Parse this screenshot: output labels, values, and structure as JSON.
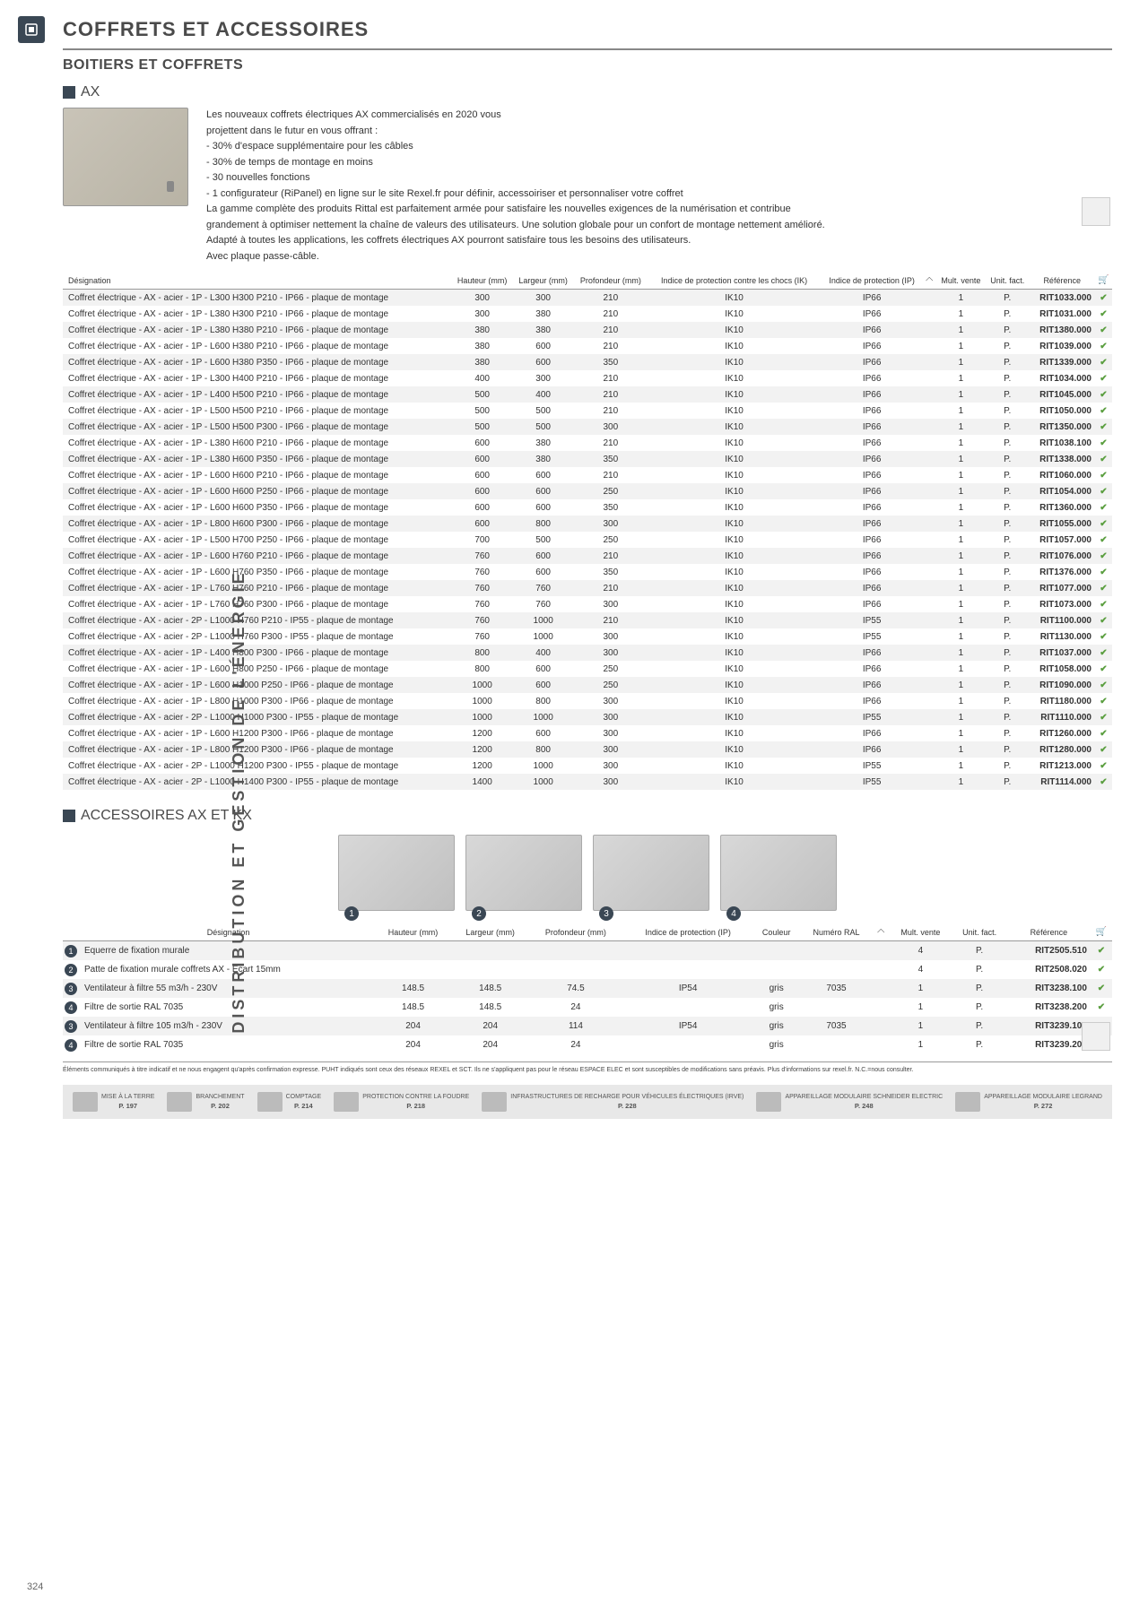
{
  "header": {
    "title": "COFFRETS ET ACCESSOIRES",
    "subtitle": "BOITIERS ET COFFRETS",
    "section1": "AX",
    "section2": "ACCESSOIRES AX ET KX"
  },
  "sidebar_text": "DISTRIBUTION ET GESTION DE L'ÉNERGIE",
  "intro": {
    "lines": [
      "Les nouveaux coffrets électriques AX commercialisés en 2020 vous",
      "projettent dans le futur en vous offrant :",
      "- 30% d'espace supplémentaire pour les câbles",
      "- 30% de temps de montage en moins",
      "- 30 nouvelles fonctions",
      "- 1 configurateur (RiPanel) en ligne sur le site Rexel.fr pour définir, accessoiriser et personnaliser votre coffret",
      "La gamme complète des produits Rittal est parfaitement armée pour satisfaire les nouvelles exigences de la numérisation et contribue",
      "grandement à optimiser nettement la chaîne de valeurs des utilisateurs. Une solution globale pour un confort de montage nettement amélioré.",
      "Adapté à toutes les applications, les coffrets électriques AX pourront satisfaire tous les besoins des utilisateurs.",
      "Avec plaque passe-câble."
    ]
  },
  "table1": {
    "headers": [
      "Désignation",
      "Hauteur (mm)",
      "Largeur (mm)",
      "Profondeur (mm)",
      "Indice de protection contre les chocs (IK)",
      "Indice de protection (IP)",
      "",
      "Mult. vente",
      "Unit. fact.",
      "Référence",
      ""
    ],
    "rows": [
      [
        "Coffret électrique - AX - acier - 1P - L300 H300 P210 - IP66 - plaque de montage",
        "300",
        "300",
        "210",
        "IK10",
        "IP66",
        "",
        "1",
        "P.",
        "RIT1033.000",
        "✔"
      ],
      [
        "Coffret électrique - AX - acier - 1P - L380 H300 P210 - IP66 - plaque de montage",
        "300",
        "380",
        "210",
        "IK10",
        "IP66",
        "",
        "1",
        "P.",
        "RIT1031.000",
        "✔"
      ],
      [
        "Coffret électrique - AX - acier - 1P - L380 H380 P210 - IP66 - plaque de montage",
        "380",
        "380",
        "210",
        "IK10",
        "IP66",
        "",
        "1",
        "P.",
        "RIT1380.000",
        "✔"
      ],
      [
        "Coffret électrique - AX - acier - 1P - L600 H380 P210 - IP66 - plaque de montage",
        "380",
        "600",
        "210",
        "IK10",
        "IP66",
        "",
        "1",
        "P.",
        "RIT1039.000",
        "✔"
      ],
      [
        "Coffret électrique - AX - acier - 1P - L600 H380 P350 - IP66 - plaque de montage",
        "380",
        "600",
        "350",
        "IK10",
        "IP66",
        "",
        "1",
        "P.",
        "RIT1339.000",
        "✔"
      ],
      [
        "Coffret électrique - AX - acier - 1P - L300 H400 P210 - IP66 - plaque de montage",
        "400",
        "300",
        "210",
        "IK10",
        "IP66",
        "",
        "1",
        "P.",
        "RIT1034.000",
        "✔"
      ],
      [
        "Coffret électrique - AX - acier - 1P - L400 H500 P210 - IP66 - plaque de montage",
        "500",
        "400",
        "210",
        "IK10",
        "IP66",
        "",
        "1",
        "P.",
        "RIT1045.000",
        "✔"
      ],
      [
        "Coffret électrique - AX - acier - 1P - L500 H500 P210 - IP66 - plaque de montage",
        "500",
        "500",
        "210",
        "IK10",
        "IP66",
        "",
        "1",
        "P.",
        "RIT1050.000",
        "✔"
      ],
      [
        "Coffret électrique - AX - acier - 1P - L500 H500 P300 - IP66 - plaque de montage",
        "500",
        "500",
        "300",
        "IK10",
        "IP66",
        "",
        "1",
        "P.",
        "RIT1350.000",
        "✔"
      ],
      [
        "Coffret électrique - AX - acier - 1P - L380 H600 P210 - IP66 - plaque de montage",
        "600",
        "380",
        "210",
        "IK10",
        "IP66",
        "",
        "1",
        "P.",
        "RIT1038.100",
        "✔"
      ],
      [
        "Coffret électrique - AX - acier - 1P - L380 H600 P350 - IP66 - plaque de montage",
        "600",
        "380",
        "350",
        "IK10",
        "IP66",
        "",
        "1",
        "P.",
        "RIT1338.000",
        "✔"
      ],
      [
        "Coffret électrique - AX - acier - 1P - L600 H600 P210 - IP66 - plaque de montage",
        "600",
        "600",
        "210",
        "IK10",
        "IP66",
        "",
        "1",
        "P.",
        "RIT1060.000",
        "✔"
      ],
      [
        "Coffret électrique - AX - acier - 1P - L600 H600 P250 - IP66 - plaque de montage",
        "600",
        "600",
        "250",
        "IK10",
        "IP66",
        "",
        "1",
        "P.",
        "RIT1054.000",
        "✔"
      ],
      [
        "Coffret électrique - AX - acier - 1P - L600 H600 P350 - IP66 - plaque de montage",
        "600",
        "600",
        "350",
        "IK10",
        "IP66",
        "",
        "1",
        "P.",
        "RIT1360.000",
        "✔"
      ],
      [
        "Coffret électrique - AX - acier - 1P - L800 H600 P300 - IP66 - plaque de montage",
        "600",
        "800",
        "300",
        "IK10",
        "IP66",
        "",
        "1",
        "P.",
        "RIT1055.000",
        "✔"
      ],
      [
        "Coffret électrique - AX - acier - 1P - L500 H700 P250 - IP66 - plaque de montage",
        "700",
        "500",
        "250",
        "IK10",
        "IP66",
        "",
        "1",
        "P.",
        "RIT1057.000",
        "✔"
      ],
      [
        "Coffret électrique - AX - acier - 1P - L600 H760 P210 - IP66 - plaque de montage",
        "760",
        "600",
        "210",
        "IK10",
        "IP66",
        "",
        "1",
        "P.",
        "RIT1076.000",
        "✔"
      ],
      [
        "Coffret électrique - AX - acier - 1P - L600 H760 P350 - IP66 - plaque de montage",
        "760",
        "600",
        "350",
        "IK10",
        "IP66",
        "",
        "1",
        "P.",
        "RIT1376.000",
        "✔"
      ],
      [
        "Coffret électrique - AX - acier - 1P - L760 H760 P210 - IP66 - plaque de montage",
        "760",
        "760",
        "210",
        "IK10",
        "IP66",
        "",
        "1",
        "P.",
        "RIT1077.000",
        "✔"
      ],
      [
        "Coffret électrique - AX - acier - 1P - L760 H760 P300 - IP66 - plaque de montage",
        "760",
        "760",
        "300",
        "IK10",
        "IP66",
        "",
        "1",
        "P.",
        "RIT1073.000",
        "✔"
      ],
      [
        "Coffret électrique - AX - acier - 2P - L1000 H760 P210 - IP55 - plaque de montage",
        "760",
        "1000",
        "210",
        "IK10",
        "IP55",
        "",
        "1",
        "P.",
        "RIT1100.000",
        "✔"
      ],
      [
        "Coffret électrique - AX - acier - 2P - L1000 H760 P300 - IP55 - plaque de montage",
        "760",
        "1000",
        "300",
        "IK10",
        "IP55",
        "",
        "1",
        "P.",
        "RIT1130.000",
        "✔"
      ],
      [
        "Coffret électrique - AX - acier - 1P - L400 H800 P300 - IP66 - plaque de montage",
        "800",
        "400",
        "300",
        "IK10",
        "IP66",
        "",
        "1",
        "P.",
        "RIT1037.000",
        "✔"
      ],
      [
        "Coffret électrique - AX - acier - 1P - L600 H800 P250 - IP66 - plaque de montage",
        "800",
        "600",
        "250",
        "IK10",
        "IP66",
        "",
        "1",
        "P.",
        "RIT1058.000",
        "✔"
      ],
      [
        "Coffret électrique - AX - acier - 1P - L600 H1000 P250 - IP66 - plaque de montage",
        "1000",
        "600",
        "250",
        "IK10",
        "IP66",
        "",
        "1",
        "P.",
        "RIT1090.000",
        "✔"
      ],
      [
        "Coffret électrique - AX - acier - 1P - L800 H1000 P300 - IP66 - plaque de montage",
        "1000",
        "800",
        "300",
        "IK10",
        "IP66",
        "",
        "1",
        "P.",
        "RIT1180.000",
        "✔"
      ],
      [
        "Coffret électrique - AX - acier - 2P - L1000 H1000 P300 - IP55 - plaque de montage",
        "1000",
        "1000",
        "300",
        "IK10",
        "IP55",
        "",
        "1",
        "P.",
        "RIT1110.000",
        "✔"
      ],
      [
        "Coffret électrique - AX - acier - 1P - L600 H1200 P300 - IP66 - plaque de montage",
        "1200",
        "600",
        "300",
        "IK10",
        "IP66",
        "",
        "1",
        "P.",
        "RIT1260.000",
        "✔"
      ],
      [
        "Coffret électrique - AX - acier - 1P - L800 H1200 P300 - IP66 - plaque de montage",
        "1200",
        "800",
        "300",
        "IK10",
        "IP66",
        "",
        "1",
        "P.",
        "RIT1280.000",
        "✔"
      ],
      [
        "Coffret électrique - AX - acier - 2P - L1000 H1200 P300 - IP55 - plaque de montage",
        "1200",
        "1000",
        "300",
        "IK10",
        "IP55",
        "",
        "1",
        "P.",
        "RIT1213.000",
        "✔"
      ],
      [
        "Coffret électrique - AX - acier - 2P - L1000 H1400 P300 - IP55 - plaque de montage",
        "1400",
        "1000",
        "300",
        "IK10",
        "IP55",
        "",
        "1",
        "P.",
        "RIT1114.000",
        "✔"
      ]
    ]
  },
  "table2": {
    "headers": [
      "",
      "Désignation",
      "Hauteur (mm)",
      "Largeur (mm)",
      "Profondeur (mm)",
      "Indice de protection (IP)",
      "Couleur",
      "Numéro RAL",
      "",
      "Mult. vente",
      "Unit. fact.",
      "Référence",
      ""
    ],
    "rows": [
      [
        "1",
        "Equerre de fixation murale",
        "",
        "",
        "",
        "",
        "",
        "",
        "",
        "4",
        "P.",
        "RIT2505.510",
        "✔"
      ],
      [
        "2",
        "Patte de fixation murale coffrets AX - Ecart 15mm",
        "",
        "",
        "",
        "",
        "",
        "",
        "",
        "4",
        "P.",
        "RIT2508.020",
        "✔"
      ],
      [
        "3",
        "Ventilateur à filtre 55 m3/h - 230V",
        "148.5",
        "148.5",
        "74.5",
        "IP54",
        "gris",
        "7035",
        "",
        "1",
        "P.",
        "RIT3238.100",
        "✔"
      ],
      [
        "4",
        "Filtre de sortie RAL 7035",
        "148.5",
        "148.5",
        "24",
        "",
        "gris",
        "",
        "",
        "1",
        "P.",
        "RIT3238.200",
        "✔"
      ],
      [
        "3",
        "Ventilateur à filtre 105 m3/h - 230V",
        "204",
        "204",
        "114",
        "IP54",
        "gris",
        "7035",
        "",
        "1",
        "P.",
        "RIT3239.100",
        "✔"
      ],
      [
        "4",
        "Filtre de sortie RAL 7035",
        "204",
        "204",
        "24",
        "",
        "gris",
        "",
        "",
        "1",
        "P.",
        "RIT3239.200",
        "✔"
      ]
    ]
  },
  "footnote": "Éléments communiqués à titre indicatif et ne nous engagent qu'après confirmation expresse. PUHT indiqués sont ceux des réseaux REXEL et SCT. Ils ne s'appliquent pas pour le réseau ESPACE ELEC et sont susceptibles de modifications sans préavis. Plus d'informations sur rexel.fr. N.C.=nous consulter.",
  "footer": [
    {
      "label": "MISE À LA TERRE",
      "page": "P. 197"
    },
    {
      "label": "BRANCHEMENT",
      "page": "P. 202"
    },
    {
      "label": "COMPTAGE",
      "page": "P. 214"
    },
    {
      "label": "PROTECTION CONTRE LA FOUDRE",
      "page": "P. 218"
    },
    {
      "label": "INFRASTRUCTURES DE RECHARGE POUR VÉHICULES ÉLECTRIQUES (IRVE)",
      "page": "P. 228"
    },
    {
      "label": "APPAREILLAGE MODULAIRE SCHNEIDER ELECTRIC",
      "page": "P. 248"
    },
    {
      "label": "APPAREILLAGE MODULAIRE LEGRAND",
      "page": "P. 272"
    }
  ],
  "page_number": "324",
  "colors": {
    "dark": "#3a4754",
    "check": "#5a9e3f",
    "row_alt": "#f2f2f2"
  }
}
